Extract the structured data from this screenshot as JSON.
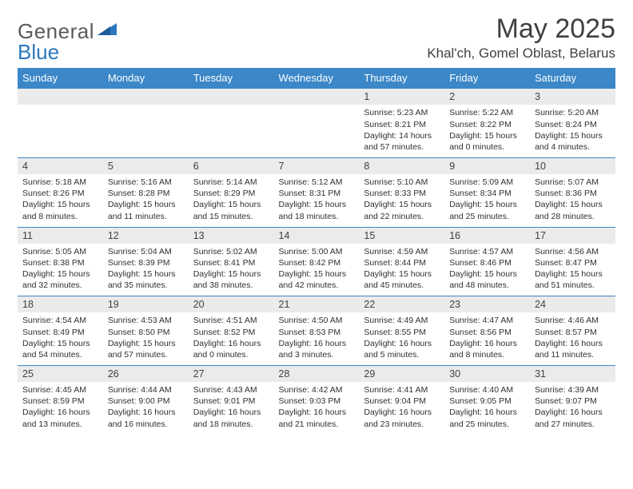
{
  "logo": {
    "part1": "General",
    "part2": "Blue"
  },
  "title": "May 2025",
  "location": "Khal'ch, Gomel Oblast, Belarus",
  "colors": {
    "header_bg": "#3b87c8",
    "header_text": "#ffffff",
    "daynum_bg": "#ebebeb",
    "text": "#404040",
    "rule": "#3b87c8",
    "logo_gray": "#5a5a5a",
    "logo_blue": "#2b78bd"
  },
  "day_labels": [
    "Sunday",
    "Monday",
    "Tuesday",
    "Wednesday",
    "Thursday",
    "Friday",
    "Saturday"
  ],
  "weeks": [
    [
      null,
      null,
      null,
      null,
      {
        "n": "1",
        "sr": "5:23 AM",
        "ss": "8:21 PM",
        "dl": "14 hours and 57 minutes."
      },
      {
        "n": "2",
        "sr": "5:22 AM",
        "ss": "8:22 PM",
        "dl": "15 hours and 0 minutes."
      },
      {
        "n": "3",
        "sr": "5:20 AM",
        "ss": "8:24 PM",
        "dl": "15 hours and 4 minutes."
      }
    ],
    [
      {
        "n": "4",
        "sr": "5:18 AM",
        "ss": "8:26 PM",
        "dl": "15 hours and 8 minutes."
      },
      {
        "n": "5",
        "sr": "5:16 AM",
        "ss": "8:28 PM",
        "dl": "15 hours and 11 minutes."
      },
      {
        "n": "6",
        "sr": "5:14 AM",
        "ss": "8:29 PM",
        "dl": "15 hours and 15 minutes."
      },
      {
        "n": "7",
        "sr": "5:12 AM",
        "ss": "8:31 PM",
        "dl": "15 hours and 18 minutes."
      },
      {
        "n": "8",
        "sr": "5:10 AM",
        "ss": "8:33 PM",
        "dl": "15 hours and 22 minutes."
      },
      {
        "n": "9",
        "sr": "5:09 AM",
        "ss": "8:34 PM",
        "dl": "15 hours and 25 minutes."
      },
      {
        "n": "10",
        "sr": "5:07 AM",
        "ss": "8:36 PM",
        "dl": "15 hours and 28 minutes."
      }
    ],
    [
      {
        "n": "11",
        "sr": "5:05 AM",
        "ss": "8:38 PM",
        "dl": "15 hours and 32 minutes."
      },
      {
        "n": "12",
        "sr": "5:04 AM",
        "ss": "8:39 PM",
        "dl": "15 hours and 35 minutes."
      },
      {
        "n": "13",
        "sr": "5:02 AM",
        "ss": "8:41 PM",
        "dl": "15 hours and 38 minutes."
      },
      {
        "n": "14",
        "sr": "5:00 AM",
        "ss": "8:42 PM",
        "dl": "15 hours and 42 minutes."
      },
      {
        "n": "15",
        "sr": "4:59 AM",
        "ss": "8:44 PM",
        "dl": "15 hours and 45 minutes."
      },
      {
        "n": "16",
        "sr": "4:57 AM",
        "ss": "8:46 PM",
        "dl": "15 hours and 48 minutes."
      },
      {
        "n": "17",
        "sr": "4:56 AM",
        "ss": "8:47 PM",
        "dl": "15 hours and 51 minutes."
      }
    ],
    [
      {
        "n": "18",
        "sr": "4:54 AM",
        "ss": "8:49 PM",
        "dl": "15 hours and 54 minutes."
      },
      {
        "n": "19",
        "sr": "4:53 AM",
        "ss": "8:50 PM",
        "dl": "15 hours and 57 minutes."
      },
      {
        "n": "20",
        "sr": "4:51 AM",
        "ss": "8:52 PM",
        "dl": "16 hours and 0 minutes."
      },
      {
        "n": "21",
        "sr": "4:50 AM",
        "ss": "8:53 PM",
        "dl": "16 hours and 3 minutes."
      },
      {
        "n": "22",
        "sr": "4:49 AM",
        "ss": "8:55 PM",
        "dl": "16 hours and 5 minutes."
      },
      {
        "n": "23",
        "sr": "4:47 AM",
        "ss": "8:56 PM",
        "dl": "16 hours and 8 minutes."
      },
      {
        "n": "24",
        "sr": "4:46 AM",
        "ss": "8:57 PM",
        "dl": "16 hours and 11 minutes."
      }
    ],
    [
      {
        "n": "25",
        "sr": "4:45 AM",
        "ss": "8:59 PM",
        "dl": "16 hours and 13 minutes."
      },
      {
        "n": "26",
        "sr": "4:44 AM",
        "ss": "9:00 PM",
        "dl": "16 hours and 16 minutes."
      },
      {
        "n": "27",
        "sr": "4:43 AM",
        "ss": "9:01 PM",
        "dl": "16 hours and 18 minutes."
      },
      {
        "n": "28",
        "sr": "4:42 AM",
        "ss": "9:03 PM",
        "dl": "16 hours and 21 minutes."
      },
      {
        "n": "29",
        "sr": "4:41 AM",
        "ss": "9:04 PM",
        "dl": "16 hours and 23 minutes."
      },
      {
        "n": "30",
        "sr": "4:40 AM",
        "ss": "9:05 PM",
        "dl": "16 hours and 25 minutes."
      },
      {
        "n": "31",
        "sr": "4:39 AM",
        "ss": "9:07 PM",
        "dl": "16 hours and 27 minutes."
      }
    ]
  ]
}
